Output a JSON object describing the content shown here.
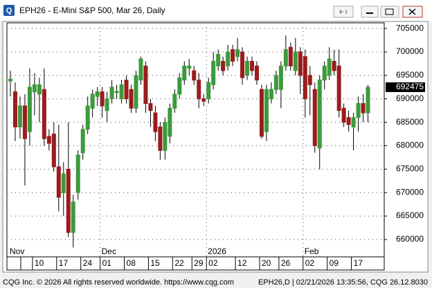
{
  "window": {
    "title": "EPH26 - E-Mini S&P 500, Mar 26, Daily"
  },
  "chart_data": {
    "type": "candlestick",
    "categories": [
      null,
      null,
      null,
      null,
      null,
      "10",
      null,
      null,
      null,
      null,
      "17",
      null,
      null,
      null,
      null,
      "24",
      null,
      null,
      null,
      "01",
      null,
      null,
      null,
      null,
      "08",
      null,
      null,
      null,
      null,
      "15",
      null,
      null,
      null,
      null,
      "22",
      null,
      null,
      null,
      "29",
      null,
      null,
      "02",
      null,
      null,
      null,
      null,
      null,
      "12",
      null,
      null,
      null,
      null,
      "20",
      null,
      null,
      null,
      "26",
      null,
      null,
      null,
      null,
      "02",
      null,
      null,
      null,
      null,
      "09",
      null,
      null,
      null,
      null,
      "17",
      null,
      null,
      null
    ],
    "open": [
      693800,
      691500,
      684000,
      688500,
      683000,
      691500,
      691000,
      692000,
      682000,
      682500,
      675500,
      670000,
      675000,
      661500,
      670000,
      678500,
      683500,
      688000,
      690500,
      691500,
      687500,
      690000,
      691300,
      690000,
      694000,
      692000,
      688000,
      694000,
      697000,
      689000,
      687000,
      684000,
      679000,
      682000,
      688000,
      691000,
      694000,
      696500,
      696000,
      694000,
      690000,
      690000,
      693000,
      697000,
      698000,
      697000,
      700500,
      699000,
      700000,
      695000,
      698000,
      697000,
      692000,
      683000,
      690000,
      692000,
      692000,
      697000,
      701000,
      696000,
      700000,
      699000,
      695000,
      692000,
      679500,
      694000,
      695000,
      698000,
      697000,
      688000,
      686000,
      684000,
      686000,
      689000,
      687000
    ],
    "high": [
      696000,
      693500,
      690500,
      691000,
      696500,
      695500,
      694500,
      696500,
      683500,
      685000,
      684500,
      676500,
      685000,
      669500,
      679000,
      684500,
      690500,
      692000,
      692500,
      692500,
      691500,
      694000,
      693000,
      694000,
      695000,
      693000,
      696000,
      699000,
      698000,
      690000,
      688500,
      685000,
      686000,
      689000,
      692000,
      695500,
      698000,
      698500,
      697000,
      695500,
      691000,
      694500,
      700000,
      700500,
      699000,
      701500,
      701500,
      703000,
      701000,
      699000,
      699000,
      698000,
      693000,
      693000,
      693500,
      696000,
      698000,
      703500,
      702000,
      703000,
      701000,
      700500,
      697000,
      693500,
      695000,
      698000,
      701000,
      700500,
      700500,
      689000,
      687500,
      687000,
      690500,
      691000,
      693000
    ],
    "low": [
      690500,
      681000,
      681500,
      671500,
      680000,
      686500,
      685000,
      680000,
      679000,
      674500,
      666000,
      665000,
      660500,
      658300,
      668500,
      677000,
      682500,
      686000,
      688500,
      686000,
      685000,
      689000,
      690000,
      689000,
      689000,
      687000,
      687000,
      693000,
      687000,
      684000,
      681000,
      677000,
      677000,
      680500,
      687000,
      690000,
      693000,
      695000,
      693000,
      688000,
      688500,
      689000,
      692000,
      696000,
      695000,
      696000,
      697000,
      698000,
      693000,
      694000,
      695000,
      693000,
      681500,
      681000,
      689000,
      691000,
      688000,
      696000,
      696000,
      695000,
      691000,
      686000,
      686500,
      678500,
      675000,
      692000,
      694000,
      695000,
      686000,
      684000,
      683000,
      679000,
      683000,
      685000,
      685000
    ],
    "close": [
      694200,
      684000,
      688500,
      681500,
      692500,
      693000,
      693000,
      681500,
      680500,
      675500,
      669000,
      674000,
      661500,
      668000,
      678000,
      683500,
      688500,
      691000,
      691500,
      688500,
      690000,
      692500,
      691600,
      693000,
      690000,
      688000,
      695000,
      698500,
      689000,
      687500,
      683000,
      679000,
      685000,
      688000,
      691000,
      694500,
      697000,
      697000,
      694000,
      690000,
      689500,
      693500,
      698000,
      699500,
      696000,
      700000,
      698000,
      700500,
      694500,
      698000,
      696000,
      694000,
      682000,
      692000,
      692000,
      695000,
      697000,
      700500,
      697000,
      700000,
      695000,
      690000,
      693000,
      680000,
      694000,
      697000,
      698500,
      696000,
      687500,
      685000,
      684500,
      686000,
      689000,
      687000,
      692475
    ],
    "month_labels": [
      {
        "label": "Nov",
        "index": 0
      },
      {
        "label": "Dec",
        "index": 19
      },
      {
        "label": "2026",
        "index": 41
      },
      {
        "label": "Feb",
        "index": 61
      }
    ],
    "ylim": [
      656300,
      706200
    ],
    "yticks": [
      660000,
      665000,
      670000,
      675000,
      680000,
      685000,
      690000,
      695000,
      700000,
      705000
    ],
    "last_price": 692475,
    "up_color": "#3c9a3c",
    "down_color": "#9a1c1c",
    "grid": true
  },
  "footer": {
    "left": "CQG Inc. © 2026 All rights reserved worldwide. https://www.cqg.com",
    "right": "EPH26,D | 02/21/2026 13:35:56, CQG 26.12.8030"
  }
}
